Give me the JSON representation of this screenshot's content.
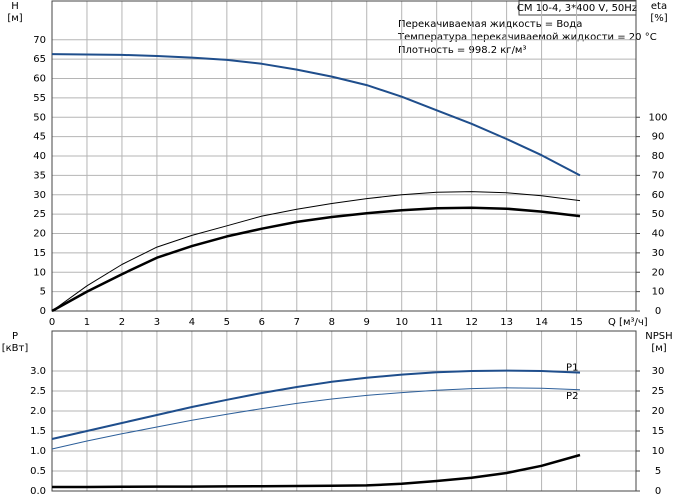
{
  "chart_data": [
    {
      "type": "line",
      "title": "CM 10-4, 3*400 V, 50Hz",
      "annotations": [
        "Перекачиваемая жидкость = Вода",
        "Температура перекачиваемой жидкости = 20 °C",
        "Плотность = 998.2 кг/м³"
      ],
      "ylabel": "H",
      "yunit": "[м]",
      "y2label": "eta",
      "y2unit": "[%]",
      "xlabel": "Q [м³/ч]",
      "x": [
        0,
        1,
        2,
        3,
        4,
        5,
        6,
        7,
        8,
        9,
        10,
        11,
        12,
        13,
        14,
        15.1
      ],
      "series": [
        {
          "color": "#1f4e8c",
          "width": 2,
          "values": [
            66.3,
            66.2,
            66.1,
            65.8,
            65.4,
            64.8,
            63.8,
            62.3,
            60.5,
            58.3,
            55.3,
            51.8,
            48.3,
            44.4,
            40.2,
            35
          ]
        },
        {
          "color": "#000000",
          "width": 1,
          "axis": "y2",
          "values": [
            0,
            13,
            24,
            33,
            39,
            44,
            49,
            52.5,
            55.5,
            58,
            60,
            61.3,
            61.6,
            61,
            59.5,
            57
          ]
        },
        {
          "color": "#000000",
          "width": 2.5,
          "axis": "y2",
          "values": [
            0,
            10,
            19,
            27.5,
            33.5,
            38.5,
            42.5,
            46,
            48.5,
            50.5,
            52,
            53,
            53.3,
            52.8,
            51.3,
            49
          ]
        }
      ],
      "xlim": [
        0,
        16.7
      ],
      "xticks": [
        0,
        1,
        2,
        3,
        4,
        5,
        6,
        7,
        8,
        9,
        10,
        11,
        12,
        13,
        14,
        15
      ],
      "ylim": [
        0,
        80
      ],
      "yticks": [
        0,
        5,
        10,
        15,
        20,
        25,
        30,
        35,
        40,
        45,
        50,
        55,
        60,
        65,
        70
      ],
      "y2lim": [
        0,
        160
      ],
      "y2ticks": [
        0,
        10,
        20,
        30,
        40,
        50,
        60,
        70,
        80,
        90,
        100
      ],
      "grid": true,
      "xtick_labels": true
    },
    {
      "type": "line",
      "ylabel": "P",
      "yunit": "[кВт]",
      "y2label": "NPSH",
      "y2unit": "[м]",
      "x": [
        0,
        1,
        2,
        3,
        4,
        5,
        6,
        7,
        8,
        9,
        10,
        11,
        12,
        13,
        14,
        15.1
      ],
      "series": [
        {
          "name": "P1",
          "color": "#1f4e8c",
          "width": 2,
          "values": [
            1.3,
            1.5,
            1.7,
            1.9,
            2.1,
            2.28,
            2.45,
            2.6,
            2.73,
            2.83,
            2.91,
            2.97,
            3.0,
            3.01,
            3.0,
            2.96
          ]
        },
        {
          "name": "P2",
          "color": "#2d5f9a",
          "width": 1,
          "values": [
            1.05,
            1.25,
            1.43,
            1.6,
            1.77,
            1.92,
            2.06,
            2.19,
            2.3,
            2.39,
            2.46,
            2.52,
            2.56,
            2.58,
            2.57,
            2.53
          ]
        },
        {
          "color": "#000000",
          "width": 2.5,
          "axis": "y2",
          "values": [
            1.0,
            1.0,
            1.05,
            1.1,
            1.1,
            1.15,
            1.2,
            1.25,
            1.3,
            1.4,
            1.8,
            2.5,
            3.3,
            4.5,
            6.3,
            9.0
          ]
        }
      ],
      "xlim": [
        0,
        16.7
      ],
      "xticks": [
        0,
        1,
        2,
        3,
        4,
        5,
        6,
        7,
        8,
        9,
        10,
        11,
        12,
        13,
        14,
        15
      ],
      "ylim": [
        0,
        4
      ],
      "yticks": [
        {
          "value": 0,
          "label": "0.0"
        },
        0.5,
        {
          "value": 1,
          "label": "1.0"
        },
        1.5,
        {
          "value": 2,
          "label": "2.0"
        },
        2.5,
        {
          "value": 3,
          "label": "3.0"
        }
      ],
      "y2lim": [
        0,
        40
      ],
      "y2ticks": [
        0,
        5,
        10,
        15,
        20,
        25,
        30
      ],
      "grid": true,
      "xtick_labels": false
    }
  ]
}
